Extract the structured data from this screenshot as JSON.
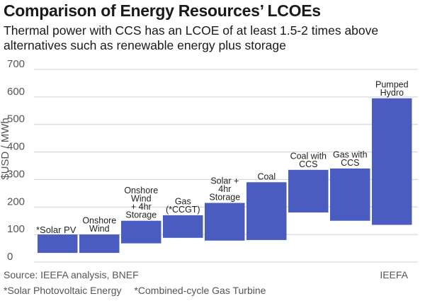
{
  "chart_data": {
    "type": "bar",
    "title": "Comparison of Energy Resources’ LCOEs",
    "subtitle": "Thermal power with CCS has an LCOE of at least 1.5-2 times above alternatives such as renewable energy plus storage",
    "ylabel": "$USD / MWh",
    "ylim": [
      0,
      700
    ],
    "yticks": [
      0,
      100,
      200,
      300,
      400,
      500,
      600,
      700
    ],
    "grid": true,
    "colors": {
      "bar": "#4a5cbf",
      "grid": "#d0d0d0"
    },
    "categories": [
      "*Solar PV",
      "Onshore Wind",
      "Onshore Wind + 4hr Storage",
      "Gas (*CCGT)",
      "Solar + 4hr Storage",
      "Coal",
      "Coal with CCS",
      "Gas with CCS",
      "Pumped Hydro"
    ],
    "category_label_lines": [
      [
        "*Solar PV"
      ],
      [
        "Onshore",
        "Wind"
      ],
      [
        "Onshore",
        "Wind",
        "+ 4hr",
        "Storage"
      ],
      [
        "Gas",
        "(*CCGT)"
      ],
      [
        "Solar +",
        "4hr",
        "Storage"
      ],
      [
        "Coal"
      ],
      [
        "Coal with",
        "CCS"
      ],
      [
        "Gas with",
        "CCS"
      ],
      [
        "Pumped",
        "Hydro"
      ]
    ],
    "low": [
      33,
      33,
      68,
      88,
      78,
      80,
      180,
      150,
      135
    ],
    "high": [
      100,
      100,
      150,
      170,
      215,
      290,
      335,
      340,
      595
    ]
  },
  "footer": {
    "source": "Source: IEEFA analysis, BNEF",
    "brand": "IEEFA",
    "note_1": "*Solar Photovoltaic Energy",
    "note_2": "*Combined-cycle Gas Turbine"
  }
}
